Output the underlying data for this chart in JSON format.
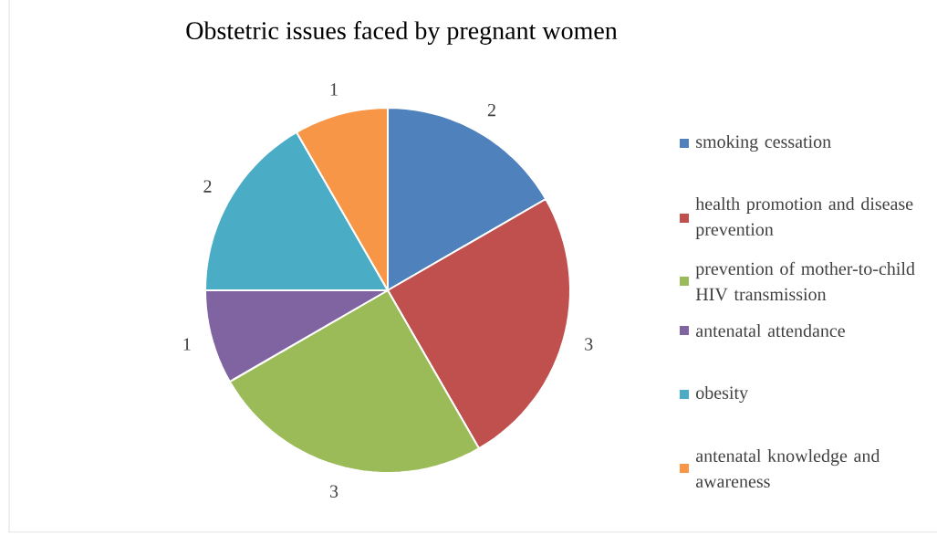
{
  "chart_data": {
    "type": "pie",
    "title": "Obstetric issues faced by pregnant women",
    "categories": [
      "smoking cessation",
      "health promotion and disease prevention",
      "prevention of mother-to-child HIV transmission",
      "antenatal attendance",
      "obesity",
      "antenatal knowledge and awareness"
    ],
    "values": [
      2,
      3,
      3,
      1,
      2,
      1
    ],
    "colors": [
      "#4f81bd",
      "#c0504d",
      "#9bbb59",
      "#8064a2",
      "#4bacc6",
      "#f79646"
    ],
    "data_labels": true,
    "legend": "right"
  }
}
